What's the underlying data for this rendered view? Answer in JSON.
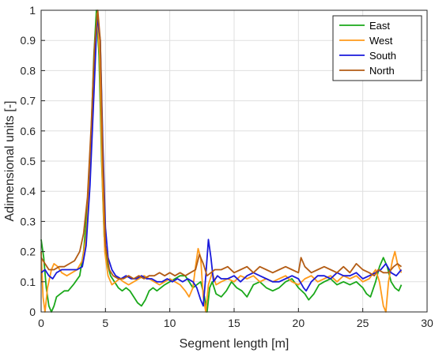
{
  "chart_data": {
    "type": "line",
    "title": "",
    "xlabel": "Segment length [m]",
    "ylabel": "Adimensional units [-]",
    "xlim": [
      0,
      30
    ],
    "ylim": [
      0,
      1
    ],
    "xticks": [
      0,
      5,
      10,
      15,
      20,
      25,
      30
    ],
    "yticks": [
      0,
      0.1,
      0.2,
      0.3,
      0.4,
      0.5,
      0.6,
      0.7,
      0.8,
      0.9,
      1
    ],
    "xtick_labels": [
      "0",
      "5",
      "10",
      "15",
      "20",
      "25",
      "30"
    ],
    "ytick_labels": [
      "0",
      "0.1",
      "0.2",
      "0.3",
      "0.4",
      "0.5",
      "0.6",
      "0.7",
      "0.8",
      "0.9",
      "1"
    ],
    "grid": true,
    "legend_position": "top-right",
    "series": [
      {
        "name": "East",
        "color": "#1aa81a",
        "points": [
          [
            0,
            0.24
          ],
          [
            0.2,
            0.18
          ],
          [
            0.4,
            0.08
          ],
          [
            0.6,
            0.02
          ],
          [
            0.8,
            0.0
          ],
          [
            1.0,
            0.02
          ],
          [
            1.2,
            0.05
          ],
          [
            1.5,
            0.06
          ],
          [
            1.8,
            0.07
          ],
          [
            2.1,
            0.07
          ],
          [
            2.5,
            0.09
          ],
          [
            3.0,
            0.12
          ],
          [
            3.3,
            0.2
          ],
          [
            3.6,
            0.35
          ],
          [
            3.9,
            0.6
          ],
          [
            4.1,
            0.85
          ],
          [
            4.3,
            1.0
          ],
          [
            4.5,
            0.85
          ],
          [
            4.7,
            0.5
          ],
          [
            4.9,
            0.25
          ],
          [
            5.1,
            0.17
          ],
          [
            5.4,
            0.12
          ],
          [
            5.7,
            0.1
          ],
          [
            6.0,
            0.08
          ],
          [
            6.3,
            0.07
          ],
          [
            6.6,
            0.08
          ],
          [
            6.9,
            0.07
          ],
          [
            7.2,
            0.05
          ],
          [
            7.5,
            0.03
          ],
          [
            7.8,
            0.02
          ],
          [
            8.1,
            0.04
          ],
          [
            8.4,
            0.07
          ],
          [
            8.7,
            0.08
          ],
          [
            9.0,
            0.07
          ],
          [
            9.3,
            0.08
          ],
          [
            9.6,
            0.09
          ],
          [
            10.0,
            0.1
          ],
          [
            10.4,
            0.11
          ],
          [
            10.8,
            0.12
          ],
          [
            11.2,
            0.12
          ],
          [
            11.5,
            0.1
          ],
          [
            11.8,
            0.08
          ],
          [
            12.1,
            0.09
          ],
          [
            12.4,
            0.1
          ],
          [
            12.7,
            0.05
          ],
          [
            12.9,
            0.0
          ],
          [
            13.1,
            0.08
          ],
          [
            13.3,
            0.1
          ],
          [
            13.6,
            0.06
          ],
          [
            14.0,
            0.05
          ],
          [
            14.4,
            0.07
          ],
          [
            14.8,
            0.1
          ],
          [
            15.2,
            0.08
          ],
          [
            15.6,
            0.07
          ],
          [
            16.0,
            0.05
          ],
          [
            16.5,
            0.09
          ],
          [
            17.0,
            0.1
          ],
          [
            17.5,
            0.08
          ],
          [
            18.0,
            0.07
          ],
          [
            18.5,
            0.08
          ],
          [
            19.0,
            0.1
          ],
          [
            19.5,
            0.11
          ],
          [
            20.0,
            0.08
          ],
          [
            20.5,
            0.06
          ],
          [
            20.8,
            0.04
          ],
          [
            21.2,
            0.06
          ],
          [
            21.6,
            0.09
          ],
          [
            22.0,
            0.1
          ],
          [
            22.5,
            0.11
          ],
          [
            23.0,
            0.09
          ],
          [
            23.5,
            0.1
          ],
          [
            24.0,
            0.09
          ],
          [
            24.5,
            0.1
          ],
          [
            25.0,
            0.08
          ],
          [
            25.3,
            0.06
          ],
          [
            25.6,
            0.05
          ],
          [
            26.0,
            0.1
          ],
          [
            26.3,
            0.15
          ],
          [
            26.6,
            0.18
          ],
          [
            26.9,
            0.15
          ],
          [
            27.2,
            0.1
          ],
          [
            27.5,
            0.08
          ],
          [
            27.8,
            0.07
          ],
          [
            28.0,
            0.09
          ]
        ]
      },
      {
        "name": "West",
        "color": "#ff9a1a",
        "points": [
          [
            0,
            0.2
          ],
          [
            0.15,
            0.05
          ],
          [
            0.3,
            0.0
          ],
          [
            0.5,
            0.08
          ],
          [
            0.8,
            0.14
          ],
          [
            1.0,
            0.16
          ],
          [
            1.3,
            0.15
          ],
          [
            1.6,
            0.13
          ],
          [
            2.0,
            0.12
          ],
          [
            2.4,
            0.13
          ],
          [
            2.8,
            0.14
          ],
          [
            3.2,
            0.17
          ],
          [
            3.5,
            0.25
          ],
          [
            3.8,
            0.45
          ],
          [
            4.1,
            0.75
          ],
          [
            4.35,
            0.99
          ],
          [
            4.55,
            0.85
          ],
          [
            4.75,
            0.45
          ],
          [
            4.95,
            0.2
          ],
          [
            5.2,
            0.12
          ],
          [
            5.5,
            0.09
          ],
          [
            5.8,
            0.1
          ],
          [
            6.1,
            0.11
          ],
          [
            6.4,
            0.1
          ],
          [
            6.8,
            0.09
          ],
          [
            7.2,
            0.1
          ],
          [
            7.6,
            0.11
          ],
          [
            8.0,
            0.12
          ],
          [
            8.4,
            0.11
          ],
          [
            8.8,
            0.1
          ],
          [
            9.2,
            0.09
          ],
          [
            9.6,
            0.1
          ],
          [
            10.0,
            0.11
          ],
          [
            10.4,
            0.1
          ],
          [
            10.8,
            0.09
          ],
          [
            11.2,
            0.07
          ],
          [
            11.5,
            0.05
          ],
          [
            11.8,
            0.08
          ],
          [
            12.0,
            0.15
          ],
          [
            12.2,
            0.21
          ],
          [
            12.4,
            0.18
          ],
          [
            12.6,
            0.05
          ],
          [
            12.8,
            0.0
          ],
          [
            13.0,
            0.09
          ],
          [
            13.3,
            0.13
          ],
          [
            13.6,
            0.09
          ],
          [
            14.0,
            0.1
          ],
          [
            14.5,
            0.11
          ],
          [
            15.0,
            0.1
          ],
          [
            15.5,
            0.12
          ],
          [
            16.0,
            0.11
          ],
          [
            16.5,
            0.12
          ],
          [
            17.0,
            0.1
          ],
          [
            17.5,
            0.11
          ],
          [
            18.0,
            0.1
          ],
          [
            18.5,
            0.11
          ],
          [
            19.0,
            0.12
          ],
          [
            19.5,
            0.1
          ],
          [
            20.0,
            0.09
          ],
          [
            20.5,
            0.11
          ],
          [
            21.0,
            0.12
          ],
          [
            21.5,
            0.1
          ],
          [
            22.0,
            0.11
          ],
          [
            22.5,
            0.12
          ],
          [
            23.0,
            0.1
          ],
          [
            23.5,
            0.12
          ],
          [
            24.0,
            0.11
          ],
          [
            24.5,
            0.12
          ],
          [
            25.0,
            0.1
          ],
          [
            25.5,
            0.11
          ],
          [
            26.0,
            0.14
          ],
          [
            26.3,
            0.1
          ],
          [
            26.6,
            0.02
          ],
          [
            26.8,
            0.0
          ],
          [
            27.0,
            0.1
          ],
          [
            27.3,
            0.17
          ],
          [
            27.5,
            0.2
          ],
          [
            27.7,
            0.16
          ],
          [
            28.0,
            0.13
          ]
        ]
      },
      {
        "name": "South",
        "color": "#1a1adb",
        "points": [
          [
            0,
            0.13
          ],
          [
            0.3,
            0.14
          ],
          [
            0.6,
            0.12
          ],
          [
            0.9,
            0.11
          ],
          [
            1.2,
            0.13
          ],
          [
            1.6,
            0.14
          ],
          [
            2.0,
            0.14
          ],
          [
            2.4,
            0.14
          ],
          [
            2.8,
            0.14
          ],
          [
            3.2,
            0.15
          ],
          [
            3.5,
            0.22
          ],
          [
            3.8,
            0.42
          ],
          [
            4.1,
            0.72
          ],
          [
            4.35,
            0.98
          ],
          [
            4.6,
            0.9
          ],
          [
            4.8,
            0.55
          ],
          [
            5.0,
            0.28
          ],
          [
            5.2,
            0.18
          ],
          [
            5.5,
            0.14
          ],
          [
            5.8,
            0.12
          ],
          [
            6.2,
            0.11
          ],
          [
            6.6,
            0.12
          ],
          [
            7.0,
            0.11
          ],
          [
            7.4,
            0.11
          ],
          [
            7.8,
            0.12
          ],
          [
            8.2,
            0.11
          ],
          [
            8.6,
            0.11
          ],
          [
            9.0,
            0.1
          ],
          [
            9.4,
            0.1
          ],
          [
            9.8,
            0.11
          ],
          [
            10.2,
            0.1
          ],
          [
            10.6,
            0.11
          ],
          [
            11.0,
            0.1
          ],
          [
            11.4,
            0.11
          ],
          [
            11.8,
            0.1
          ],
          [
            12.1,
            0.08
          ],
          [
            12.4,
            0.04
          ],
          [
            12.6,
            0.02
          ],
          [
            12.8,
            0.12
          ],
          [
            13.0,
            0.24
          ],
          [
            13.2,
            0.18
          ],
          [
            13.4,
            0.1
          ],
          [
            13.7,
            0.12
          ],
          [
            14.0,
            0.11
          ],
          [
            14.5,
            0.11
          ],
          [
            15.0,
            0.12
          ],
          [
            15.5,
            0.1
          ],
          [
            16.0,
            0.12
          ],
          [
            16.5,
            0.13
          ],
          [
            17.0,
            0.12
          ],
          [
            17.5,
            0.11
          ],
          [
            18.0,
            0.1
          ],
          [
            18.5,
            0.1
          ],
          [
            19.0,
            0.11
          ],
          [
            19.5,
            0.12
          ],
          [
            20.0,
            0.11
          ],
          [
            20.4,
            0.08
          ],
          [
            20.6,
            0.07
          ],
          [
            21.0,
            0.1
          ],
          [
            21.5,
            0.12
          ],
          [
            22.0,
            0.12
          ],
          [
            22.5,
            0.11
          ],
          [
            23.0,
            0.13
          ],
          [
            23.5,
            0.12
          ],
          [
            24.0,
            0.12
          ],
          [
            24.5,
            0.13
          ],
          [
            25.0,
            0.11
          ],
          [
            25.5,
            0.12
          ],
          [
            26.0,
            0.13
          ],
          [
            26.4,
            0.14
          ],
          [
            26.8,
            0.16
          ],
          [
            27.2,
            0.13
          ],
          [
            27.6,
            0.12
          ],
          [
            28.0,
            0.14
          ]
        ]
      },
      {
        "name": "North",
        "color": "#b35c14",
        "points": [
          [
            0,
            0.18
          ],
          [
            0.3,
            0.16
          ],
          [
            0.6,
            0.14
          ],
          [
            1.0,
            0.14
          ],
          [
            1.4,
            0.15
          ],
          [
            1.8,
            0.15
          ],
          [
            2.2,
            0.16
          ],
          [
            2.6,
            0.17
          ],
          [
            3.0,
            0.2
          ],
          [
            3.3,
            0.26
          ],
          [
            3.6,
            0.38
          ],
          [
            3.9,
            0.62
          ],
          [
            4.15,
            0.88
          ],
          [
            4.4,
            1.0
          ],
          [
            4.6,
            0.9
          ],
          [
            4.8,
            0.5
          ],
          [
            5.0,
            0.22
          ],
          [
            5.3,
            0.14
          ],
          [
            5.6,
            0.12
          ],
          [
            6.0,
            0.11
          ],
          [
            6.4,
            0.11
          ],
          [
            6.8,
            0.12
          ],
          [
            7.2,
            0.11
          ],
          [
            7.6,
            0.12
          ],
          [
            8.0,
            0.11
          ],
          [
            8.4,
            0.12
          ],
          [
            8.8,
            0.12
          ],
          [
            9.2,
            0.13
          ],
          [
            9.6,
            0.12
          ],
          [
            10.0,
            0.13
          ],
          [
            10.4,
            0.12
          ],
          [
            10.8,
            0.13
          ],
          [
            11.2,
            0.12
          ],
          [
            11.6,
            0.13
          ],
          [
            12.0,
            0.14
          ],
          [
            12.3,
            0.19
          ],
          [
            12.6,
            0.16
          ],
          [
            12.9,
            0.12
          ],
          [
            13.2,
            0.13
          ],
          [
            13.5,
            0.14
          ],
          [
            14.0,
            0.14
          ],
          [
            14.5,
            0.15
          ],
          [
            15.0,
            0.13
          ],
          [
            15.5,
            0.14
          ],
          [
            16.0,
            0.15
          ],
          [
            16.5,
            0.13
          ],
          [
            17.0,
            0.15
          ],
          [
            17.5,
            0.14
          ],
          [
            18.0,
            0.13
          ],
          [
            18.5,
            0.14
          ],
          [
            19.0,
            0.15
          ],
          [
            19.5,
            0.14
          ],
          [
            20.0,
            0.13
          ],
          [
            20.2,
            0.18
          ],
          [
            20.5,
            0.15
          ],
          [
            21.0,
            0.13
          ],
          [
            21.5,
            0.14
          ],
          [
            22.0,
            0.15
          ],
          [
            22.5,
            0.14
          ],
          [
            23.0,
            0.13
          ],
          [
            23.5,
            0.15
          ],
          [
            24.0,
            0.13
          ],
          [
            24.5,
            0.16
          ],
          [
            25.0,
            0.14
          ],
          [
            25.5,
            0.13
          ],
          [
            25.9,
            0.12
          ],
          [
            26.2,
            0.14
          ],
          [
            26.6,
            0.13
          ],
          [
            27.0,
            0.13
          ],
          [
            27.4,
            0.15
          ],
          [
            27.7,
            0.16
          ],
          [
            28.0,
            0.15
          ]
        ]
      }
    ]
  }
}
